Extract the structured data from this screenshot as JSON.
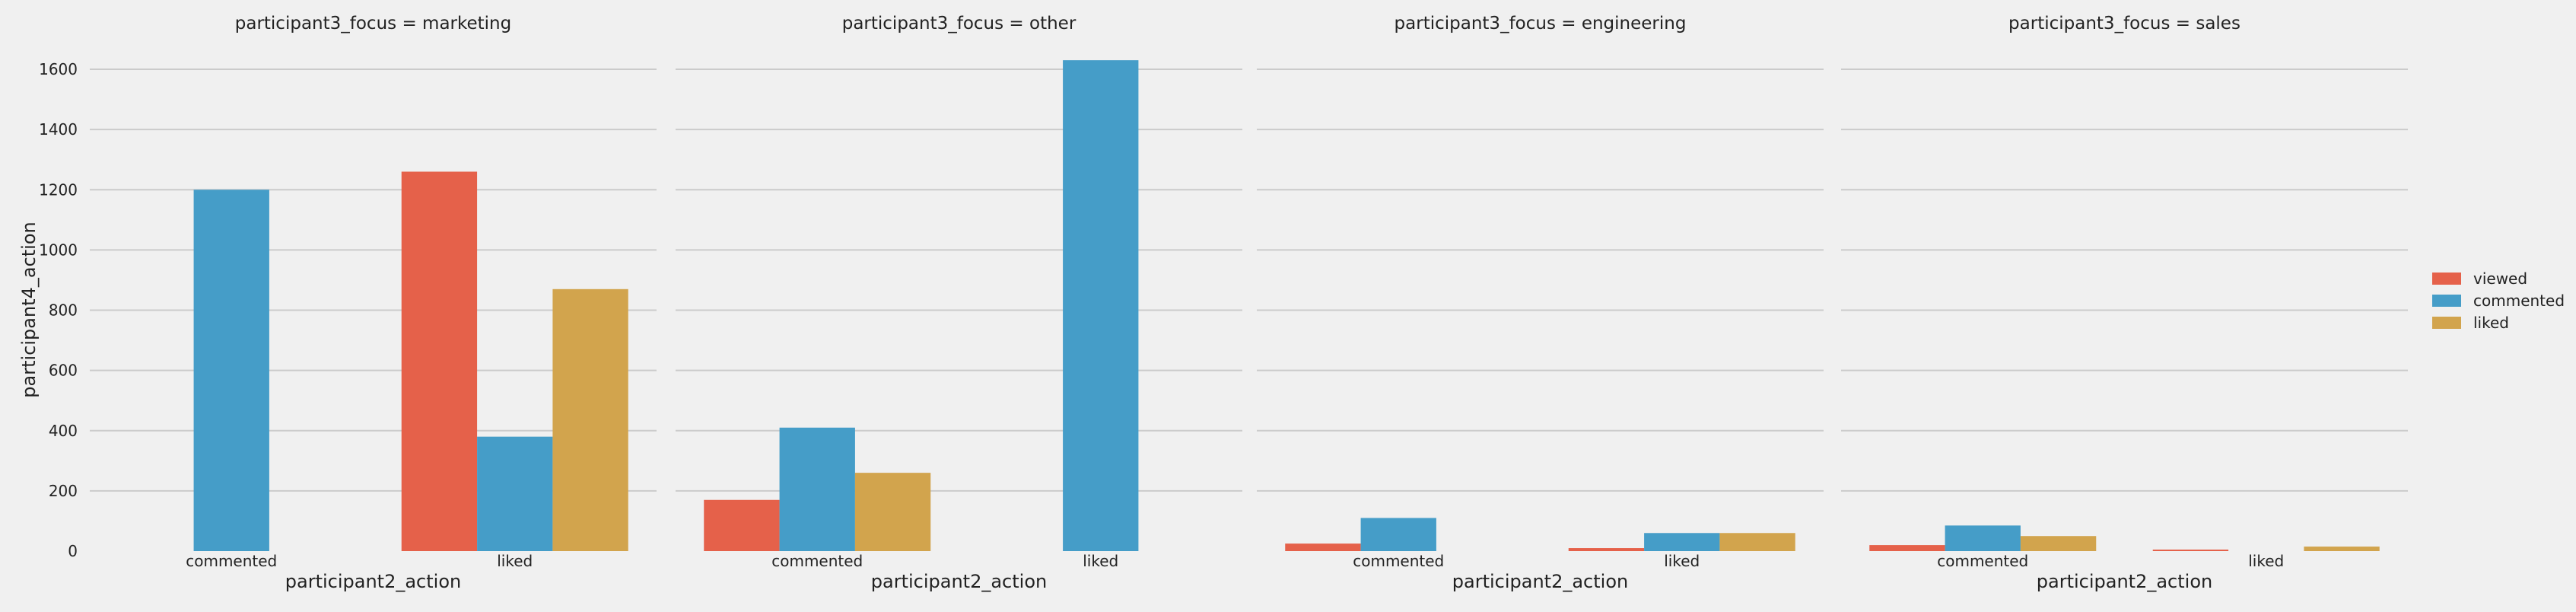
{
  "chart_data": {
    "type": "bar",
    "figure": {
      "ylabel": "participant4_action",
      "xlabel": "participant2_action",
      "ylim": [
        0,
        1600
      ],
      "yticks": [
        0,
        200,
        400,
        600,
        800,
        1000,
        1200,
        1400,
        1600
      ],
      "grid": true,
      "legend_placement": "center-right outside"
    },
    "categories": [
      "commented",
      "liked"
    ],
    "hue_order": [
      "viewed",
      "commented",
      "liked"
    ],
    "legend": [
      {
        "name": "viewed",
        "color": "#e5614a"
      },
      {
        "name": "commented",
        "color": "#459dc8"
      },
      {
        "name": "liked",
        "color": "#d2a44d"
      }
    ],
    "panels": [
      {
        "title": "participant3_focus = marketing",
        "series": [
          {
            "name": "viewed",
            "values": [
              0,
              1260
            ]
          },
          {
            "name": "commented",
            "values": [
              1200,
              380
            ]
          },
          {
            "name": "liked",
            "values": [
              0,
              870
            ]
          }
        ]
      },
      {
        "title": "participant3_focus = other",
        "series": [
          {
            "name": "viewed",
            "values": [
              170,
              0
            ]
          },
          {
            "name": "commented",
            "values": [
              410,
              1630
            ]
          },
          {
            "name": "liked",
            "values": [
              260,
              0
            ]
          }
        ]
      },
      {
        "title": "participant3_focus = engineering",
        "series": [
          {
            "name": "viewed",
            "values": [
              25,
              10
            ]
          },
          {
            "name": "commented",
            "values": [
              110,
              60
            ]
          },
          {
            "name": "liked",
            "values": [
              0,
              60
            ]
          }
        ]
      },
      {
        "title": "participant3_focus = sales",
        "series": [
          {
            "name": "viewed",
            "values": [
              20,
              5
            ]
          },
          {
            "name": "commented",
            "values": [
              85,
              0
            ]
          },
          {
            "name": "liked",
            "values": [
              50,
              15
            ]
          }
        ]
      }
    ]
  }
}
